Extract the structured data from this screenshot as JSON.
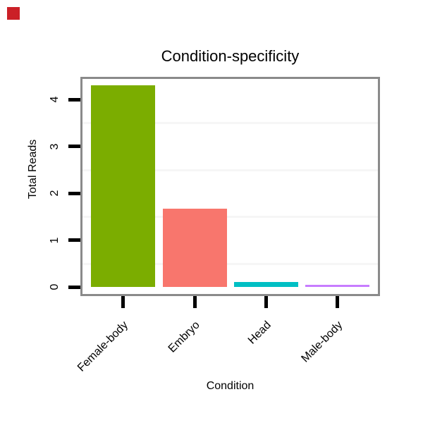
{
  "marker": {
    "color": "#cb2027"
  },
  "chart_data": {
    "type": "bar",
    "title": "Condition-specificity",
    "xlabel": "Condition",
    "ylabel": "Total Reads",
    "categories": [
      "Female-body",
      "Embryo",
      "Head",
      "Male-body"
    ],
    "values": [
      4.3,
      1.67,
      0.11,
      0.05
    ],
    "bar_colors": [
      "#7bad00",
      "#f8766d",
      "#00bfc4",
      "#c77cff"
    ],
    "y_ticks": [
      "0",
      "1",
      "2",
      "3",
      "4"
    ],
    "y_tick_values": [
      0,
      1,
      2,
      3,
      4
    ],
    "ylim": [
      -0.19,
      4.49
    ],
    "minor_gridline_values": [
      0.5,
      1.5,
      2.5,
      3.5
    ],
    "grid": "minor horizontal only",
    "legend": "none",
    "plot_border_color": "#8a8a8a",
    "gridline_color": "#f6f6f6",
    "tick_color": "#000000"
  }
}
